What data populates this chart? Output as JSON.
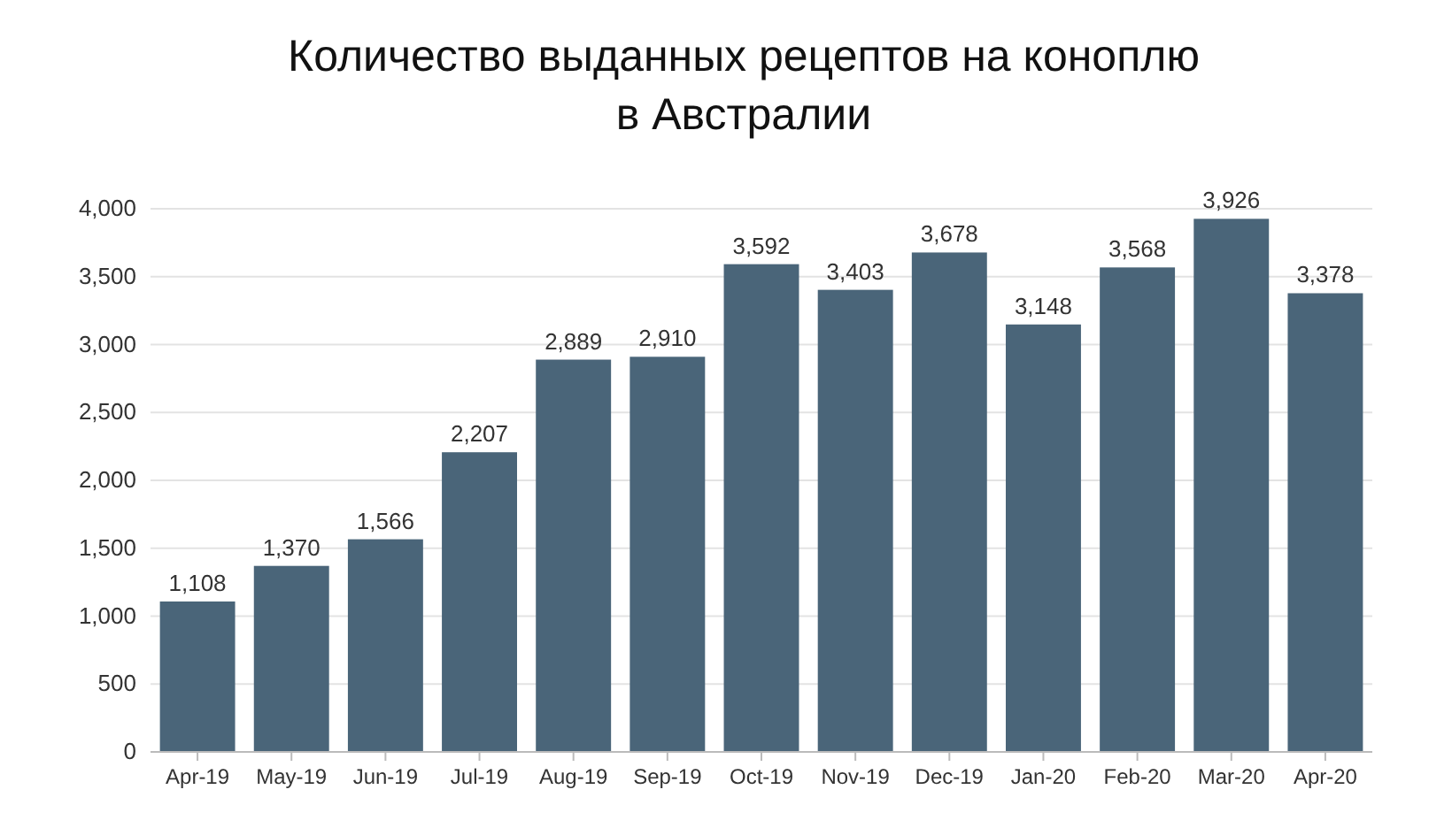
{
  "chart_data": {
    "type": "bar",
    "title": "Количество выданных рецептов на коноплю\nв Австралии",
    "categories": [
      "Apr-19",
      "May-19",
      "Jun-19",
      "Jul-19",
      "Aug-19",
      "Sep-19",
      "Oct-19",
      "Nov-19",
      "Dec-19",
      "Jan-20",
      "Feb-20",
      "Mar-20",
      "Apr-20"
    ],
    "values": [
      1108,
      1370,
      1566,
      2207,
      2889,
      2910,
      3592,
      3403,
      3678,
      3148,
      3568,
      3926,
      3378
    ],
    "value_labels": [
      "1,108",
      "1,370",
      "1,566",
      "2,207",
      "2,889",
      "2,910",
      "3,592",
      "3,403",
      "3,678",
      "3,148",
      "3,568",
      "3,926",
      "3,378"
    ],
    "color": "#4a6579",
    "ylim": [
      0,
      4000
    ],
    "yticks": [
      0,
      {
        "value": 500,
        "label": "500"
      },
      {
        "value": 1000,
        "label": "1,000"
      },
      {
        "value": 1500,
        "label": "1,500"
      },
      {
        "value": 2000,
        "label": "2,000"
      },
      {
        "value": 2500,
        "label": "2,500"
      },
      {
        "value": 3000,
        "label": "3,000"
      },
      {
        "value": 3500,
        "label": "3,500"
      },
      {
        "value": 4000,
        "label": "4,000"
      }
    ],
    "grid": "y"
  }
}
